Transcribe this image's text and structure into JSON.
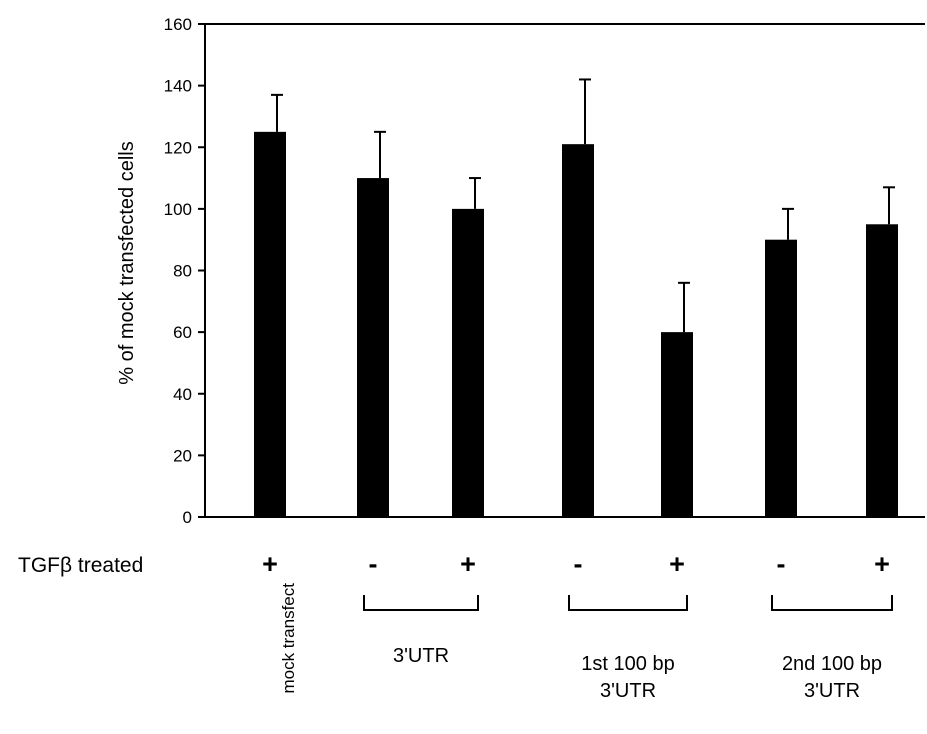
{
  "chart_data": {
    "type": "bar",
    "title": "",
    "xlabel": "",
    "ylabel": "% of mock transfected cells",
    "ylim": [
      0,
      160
    ],
    "yticks": [
      "0",
      "20",
      "40",
      "60",
      "80",
      "100",
      "120",
      "140",
      "160"
    ],
    "grid": false,
    "legend": "none",
    "bar_color": "#000000",
    "values": [
      125,
      110,
      100,
      121,
      60,
      90,
      95
    ],
    "errors": [
      12,
      15,
      10,
      21,
      16,
      10,
      12
    ],
    "row_label": "TGFβ treated",
    "treatment_signs": [
      "+",
      "-",
      "+",
      "-",
      "+",
      "-",
      "+"
    ],
    "mock_label": "mock transfect",
    "groups": [
      {
        "lines": [
          "3'UTR"
        ]
      },
      {
        "lines": [
          "1st 100 bp",
          "3'UTR"
        ]
      },
      {
        "lines": [
          "2nd 100 bp",
          "3'UTR"
        ]
      }
    ]
  }
}
